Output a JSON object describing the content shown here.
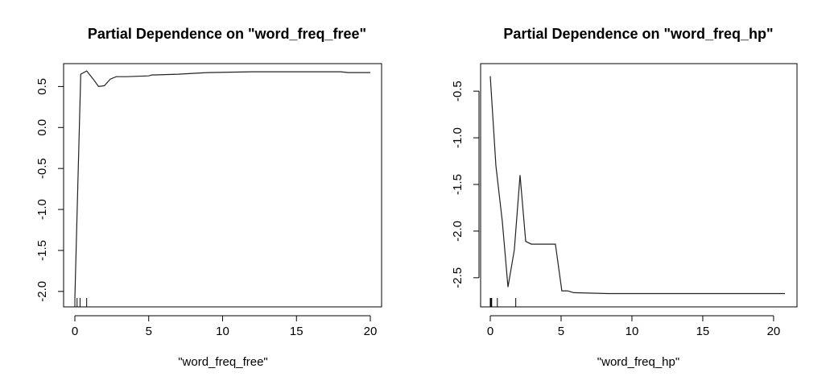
{
  "chart_data": [
    {
      "type": "line",
      "title": "Partial Dependence on \"word_freq_free\"",
      "xlabel": "\"word_freq_free\"",
      "ylabel": "",
      "xlim": [
        0,
        20
      ],
      "ylim": [
        -2.1,
        0.72
      ],
      "xticks": [
        0,
        5,
        10,
        15,
        20
      ],
      "xtick_labels": [
        "0",
        "5",
        "10",
        "15",
        "20"
      ],
      "yticks": [
        0.5,
        0.0,
        -0.5,
        -1.0,
        -1.5,
        -2.0
      ],
      "ytick_labels": [
        "0.5",
        "0.0",
        "-0.5",
        "-1.0",
        "-1.5",
        "-2.0"
      ],
      "grid": false,
      "rug": [
        0.0,
        0.15,
        0.35,
        0.8
      ],
      "x": [
        0.0,
        0.4,
        0.8,
        1.2,
        1.6,
        2.0,
        2.4,
        2.8,
        3.5,
        5.0,
        5.2,
        7.0,
        9.0,
        12.0,
        15.0,
        18.0,
        18.5,
        20.0
      ],
      "y": [
        -2.08,
        0.65,
        0.69,
        0.6,
        0.5,
        0.51,
        0.59,
        0.62,
        0.62,
        0.63,
        0.64,
        0.65,
        0.67,
        0.68,
        0.68,
        0.68,
        0.67,
        0.67
      ]
    },
    {
      "type": "line",
      "title": "Partial Dependence on \"word_freq_hp\"",
      "xlabel": "\"word_freq_hp\"",
      "ylabel": "",
      "xlim": [
        0,
        20.8
      ],
      "ylim": [
        -2.7,
        -0.3
      ],
      "xticks": [
        0,
        5,
        10,
        15,
        20
      ],
      "xtick_labels": [
        "0",
        "5",
        "10",
        "15",
        "20"
      ],
      "yticks": [
        -0.5,
        -1.0,
        -1.5,
        -2.0,
        -2.5
      ],
      "ytick_labels": [
        "-0.5",
        "-1.0",
        "-1.5",
        "-2.0",
        "-2.5"
      ],
      "grid": false,
      "rug": [
        0.0,
        0.05,
        0.1,
        0.5,
        1.8
      ],
      "x": [
        0.0,
        0.4,
        0.85,
        1.25,
        1.7,
        2.1,
        2.5,
        2.9,
        4.6,
        5.05,
        5.45,
        5.9,
        8.3,
        20.8
      ],
      "y": [
        -0.34,
        -1.3,
        -1.9,
        -2.6,
        -2.2,
        -1.4,
        -2.11,
        -2.14,
        -2.14,
        -2.64,
        -2.64,
        -2.66,
        -2.67,
        -2.67
      ]
    }
  ]
}
